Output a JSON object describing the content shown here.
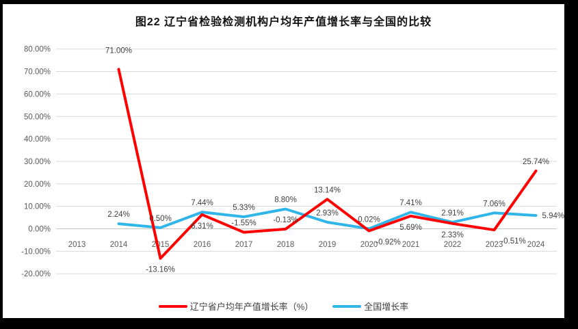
{
  "colors": {
    "frame": "#000000",
    "gridline": "#D9D9D9",
    "axis_line": "#C6C6C6",
    "axis_text": "#595959",
    "label_text": "#3F3F3F",
    "liaoning_red": "#FF0000",
    "national_blue": "#2FB5E8"
  },
  "chart_data": {
    "type": "line",
    "title": "图22 辽宁省检验检测机构户均年产值增长率与全国的比较",
    "xlabel": "",
    "ylabel": "",
    "categories": [
      "2013",
      "2014",
      "2015",
      "2016",
      "2017",
      "2018",
      "2019",
      "2020",
      "2021",
      "2022",
      "2023",
      "2024"
    ],
    "ylim": [
      -20,
      80
    ],
    "grid": true,
    "legend_position": "bottom",
    "y_axis": {
      "ticks": [
        {
          "value": 80,
          "label": "80.00%"
        },
        {
          "value": 70,
          "label": "70.00%"
        },
        {
          "value": 60,
          "label": "60.00%"
        },
        {
          "value": 50,
          "label": "50.00%"
        },
        {
          "value": 40,
          "label": "40.00%"
        },
        {
          "value": 30,
          "label": "30.00%"
        },
        {
          "value": 20,
          "label": "20.00%"
        },
        {
          "value": 10,
          "label": "10.00%"
        },
        {
          "value": 0,
          "label": "0.00%"
        },
        {
          "value": -10,
          "label": "-10.00%"
        },
        {
          "value": -20,
          "label": "-20.00%"
        }
      ]
    },
    "series": [
      {
        "id": "liaoning",
        "name": "辽宁省户均年产值增长率（%）",
        "color": "#FF0000",
        "values": [
          null,
          71.0,
          -13.16,
          6.31,
          -1.55,
          -0.13,
          13.14,
          -0.92,
          5.69,
          2.33,
          -0.51,
          25.74
        ],
        "labels": [
          null,
          "71.00%",
          "-13.16%",
          "6.31%",
          "-1.55%",
          "-0.13%",
          "13.14%",
          "-0.92%",
          "5.69%",
          "2.33%",
          "-0.51%",
          "25.74%"
        ],
        "label_pos": [
          null,
          "above-far",
          "below",
          "below",
          "above",
          "above",
          "above",
          "below-right",
          "below",
          "below",
          "below-right",
          "above"
        ]
      },
      {
        "id": "national",
        "name": "全国增长率",
        "color": "#2FB5E8",
        "values": [
          null,
          2.24,
          0.5,
          7.44,
          5.33,
          8.8,
          2.93,
          0.02,
          7.41,
          2.91,
          7.06,
          5.94
        ],
        "labels": [
          null,
          "2.24%",
          "0.50%",
          "7.44%",
          "5.33%",
          "8.80%",
          "2.93%",
          "0.02%",
          "7.41%",
          "2.91%",
          "7.06%",
          "5.94%"
        ],
        "label_pos": [
          null,
          "above",
          "above",
          "above",
          "above",
          "above",
          "above",
          "above",
          "above",
          "above",
          "above",
          "right"
        ]
      }
    ]
  }
}
